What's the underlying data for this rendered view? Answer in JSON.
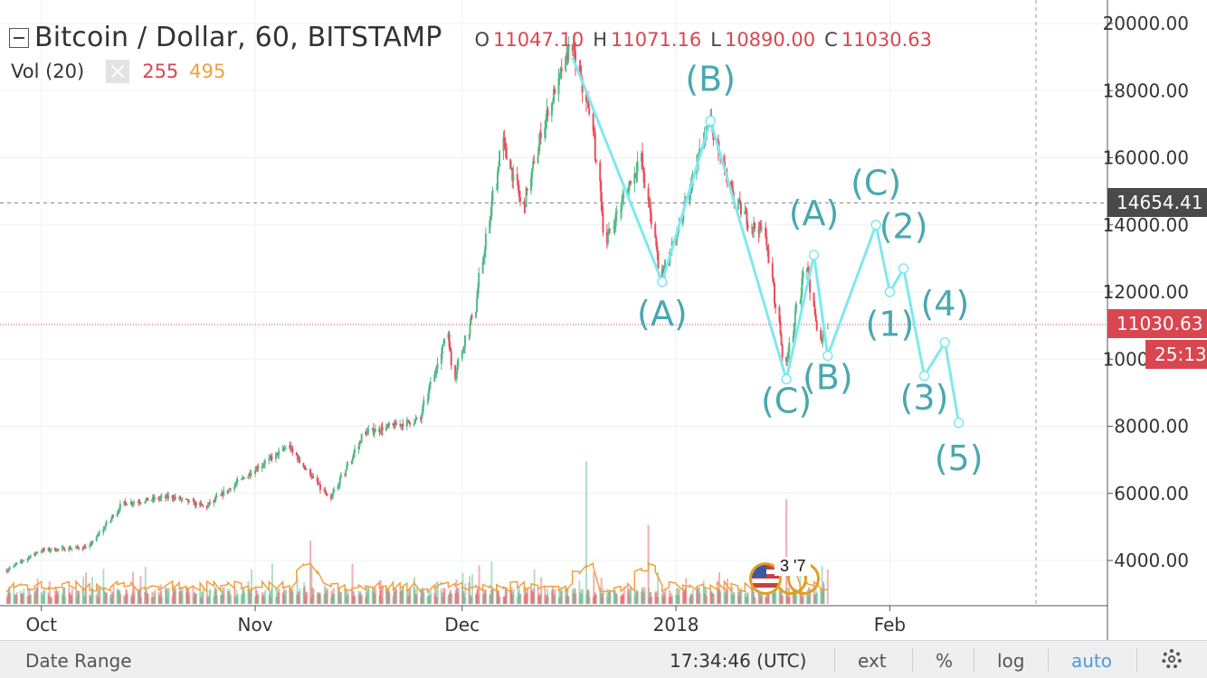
{
  "header": {
    "title": "Bitcoin / Dollar, 60, BITSTAMP",
    "ohlc": [
      {
        "key": "O",
        "value": "11047.10"
      },
      {
        "key": "H",
        "value": "11071.16"
      },
      {
        "key": "L",
        "value": "10890.00"
      },
      {
        "key": "C",
        "value": "11030.63"
      }
    ]
  },
  "volume_legend": {
    "label": "Vol (20)",
    "value1": "255",
    "value2": "495"
  },
  "price_labels": {
    "marker": "14654.41",
    "current": "11030.63",
    "countdown": "25:13"
  },
  "event_badge": {
    "text": "3 '7"
  },
  "bottom_bar": {
    "date_range": "Date Range",
    "time": "17:34:46 (UTC)",
    "ext": "ext",
    "percent": "%",
    "log": "log",
    "auto": "auto"
  },
  "colors": {
    "up": "#53b987",
    "down": "#eb4d5c",
    "wave": "#7fe8f0",
    "wave_text": "#4aa8b0",
    "current_line": "#d9464f",
    "price_label_dark": "#4a4a4a"
  },
  "chart_data": {
    "type": "candlestick",
    "title": "Bitcoin / Dollar, 60, BITSTAMP",
    "xlabel": "",
    "ylabel": "",
    "ylim": [
      2600,
      20600
    ],
    "x_ticks": [
      "Oct",
      "Nov",
      "Dec",
      "2018",
      "Feb"
    ],
    "y_ticks": [
      "20000.00",
      "18000.00",
      "16000.00",
      "14000.00",
      "12000.00",
      "10000.00",
      "8000.00",
      "6000.00",
      "4000.00"
    ],
    "reference_lines": [
      14654.41,
      11030.63
    ],
    "price_path": [
      {
        "date": "2017-09-26",
        "price": 3700
      },
      {
        "date": "2017-10-01",
        "price": 4300
      },
      {
        "date": "2017-10-08",
        "price": 4400
      },
      {
        "date": "2017-10-13",
        "price": 5700
      },
      {
        "date": "2017-10-20",
        "price": 5900
      },
      {
        "date": "2017-10-25",
        "price": 5600
      },
      {
        "date": "2017-11-01",
        "price": 6700
      },
      {
        "date": "2017-11-06",
        "price": 7400
      },
      {
        "date": "2017-11-12",
        "price": 5800
      },
      {
        "date": "2017-11-17",
        "price": 7800
      },
      {
        "date": "2017-11-25",
        "price": 8200
      },
      {
        "date": "2017-11-29",
        "price": 10800
      },
      {
        "date": "2017-11-30",
        "price": 9500
      },
      {
        "date": "2017-12-03",
        "price": 11500
      },
      {
        "date": "2017-12-07",
        "price": 16500
      },
      {
        "date": "2017-12-10",
        "price": 14500
      },
      {
        "date": "2017-12-13",
        "price": 17000
      },
      {
        "date": "2017-12-17",
        "price": 19400
      },
      {
        "date": "2017-12-20",
        "price": 17000
      },
      {
        "date": "2017-12-22",
        "price": 13500
      },
      {
        "date": "2017-12-24",
        "price": 14500
      },
      {
        "date": "2017-12-27",
        "price": 16000
      },
      {
        "date": "2017-12-30",
        "price": 12500
      },
      {
        "date": "2018-01-01",
        "price": 13500
      },
      {
        "date": "2018-01-06",
        "price": 17100
      },
      {
        "date": "2018-01-09",
        "price": 15000
      },
      {
        "date": "2018-01-12",
        "price": 14000
      },
      {
        "date": "2018-01-14",
        "price": 13800
      },
      {
        "date": "2018-01-17",
        "price": 9800
      },
      {
        "date": "2018-01-20",
        "price": 12800
      },
      {
        "date": "2018-01-22",
        "price": 10500
      },
      {
        "date": "2018-01-23",
        "price": 11000
      }
    ],
    "volume_peaks": [
      {
        "date": "2017-12-19",
        "height": 0.45
      },
      {
        "date": "2018-01-17",
        "height": 0.33
      },
      {
        "date": "2017-12-28",
        "height": 0.25
      },
      {
        "date": "2017-11-09",
        "height": 0.2
      }
    ],
    "wave_lines": [
      [
        {
          "date": "2017-12-17",
          "price": 19000
        },
        {
          "date": "2017-12-30",
          "price": 12300
        },
        {
          "date": "2018-01-06",
          "price": 17100
        },
        {
          "date": "2018-01-17",
          "price": 9400
        },
        {
          "date": "2018-01-21",
          "price": 13100
        },
        {
          "date": "2018-01-23",
          "price": 10100
        },
        {
          "date": "2018-01-30",
          "price": 14000
        },
        {
          "date": "2018-02-01",
          "price": 12000
        },
        {
          "date": "2018-02-03",
          "price": 12700
        },
        {
          "date": "2018-02-06",
          "price": 9500
        },
        {
          "date": "2018-02-09",
          "price": 10500
        },
        {
          "date": "2018-02-11",
          "price": 8100
        }
      ]
    ],
    "wave_labels": [
      {
        "text": "(B)",
        "date": "2018-01-06",
        "price": 18000
      },
      {
        "text": "(A)",
        "date": "2017-12-30",
        "price": 11000
      },
      {
        "text": "(A)",
        "date": "2018-01-21",
        "price": 14000
      },
      {
        "text": "(C)",
        "date": "2018-01-17",
        "price": 8400
      },
      {
        "text": "(B)",
        "date": "2018-01-23",
        "price": 9100
      },
      {
        "text": "(C)",
        "date": "2018-01-30",
        "price": 14900
      },
      {
        "text": "(2)",
        "date": "2018-02-03",
        "price": 13600
      },
      {
        "text": "(1)",
        "date": "2018-02-01",
        "price": 10700
      },
      {
        "text": "(4)",
        "date": "2018-02-09",
        "price": 11300
      },
      {
        "text": "(3)",
        "date": "2018-02-06",
        "price": 8500
      },
      {
        "text": "(5)",
        "date": "2018-02-11",
        "price": 6700
      }
    ]
  }
}
